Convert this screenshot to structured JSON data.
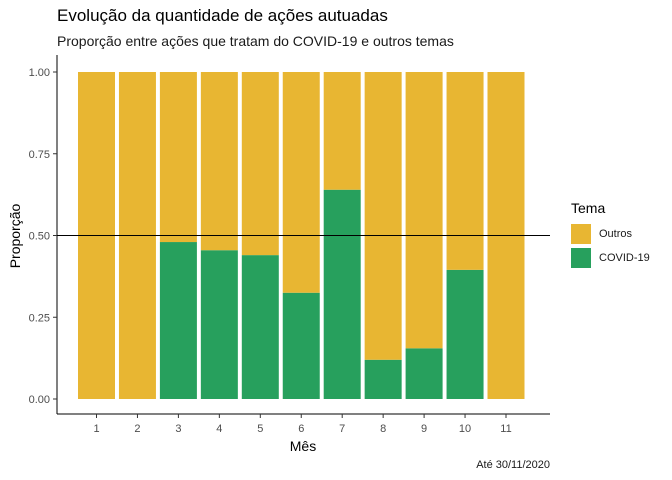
{
  "chart_data": {
    "type": "bar",
    "stacked": true,
    "title": "Evolução da quantidade de ações autuadas",
    "subtitle": "Proporção entre ações que tratam do COVID-19 e outros temas",
    "caption": "Até 30/11/2020",
    "xlabel": "Mês",
    "ylabel": "Proporção",
    "categories": [
      "1",
      "2",
      "3",
      "4",
      "5",
      "6",
      "7",
      "8",
      "9",
      "10",
      "11"
    ],
    "ylim": [
      0,
      1
    ],
    "yticks": [
      "0.00",
      "0.25",
      "0.50",
      "0.75",
      "1.00"
    ],
    "reference_line": 0.5,
    "legend_title": "Tema",
    "legend_position": "right",
    "grid": false,
    "series": [
      {
        "name": "COVID-19",
        "color": "#27A05D",
        "values": [
          0,
          0,
          0.48,
          0.455,
          0.44,
          0.325,
          0.64,
          0.12,
          0.155,
          0.395,
          0
        ]
      },
      {
        "name": "Outros",
        "color": "#E8B632",
        "values": [
          1,
          1,
          0.52,
          0.545,
          0.56,
          0.675,
          0.36,
          0.88,
          0.845,
          0.605,
          1
        ]
      }
    ]
  }
}
